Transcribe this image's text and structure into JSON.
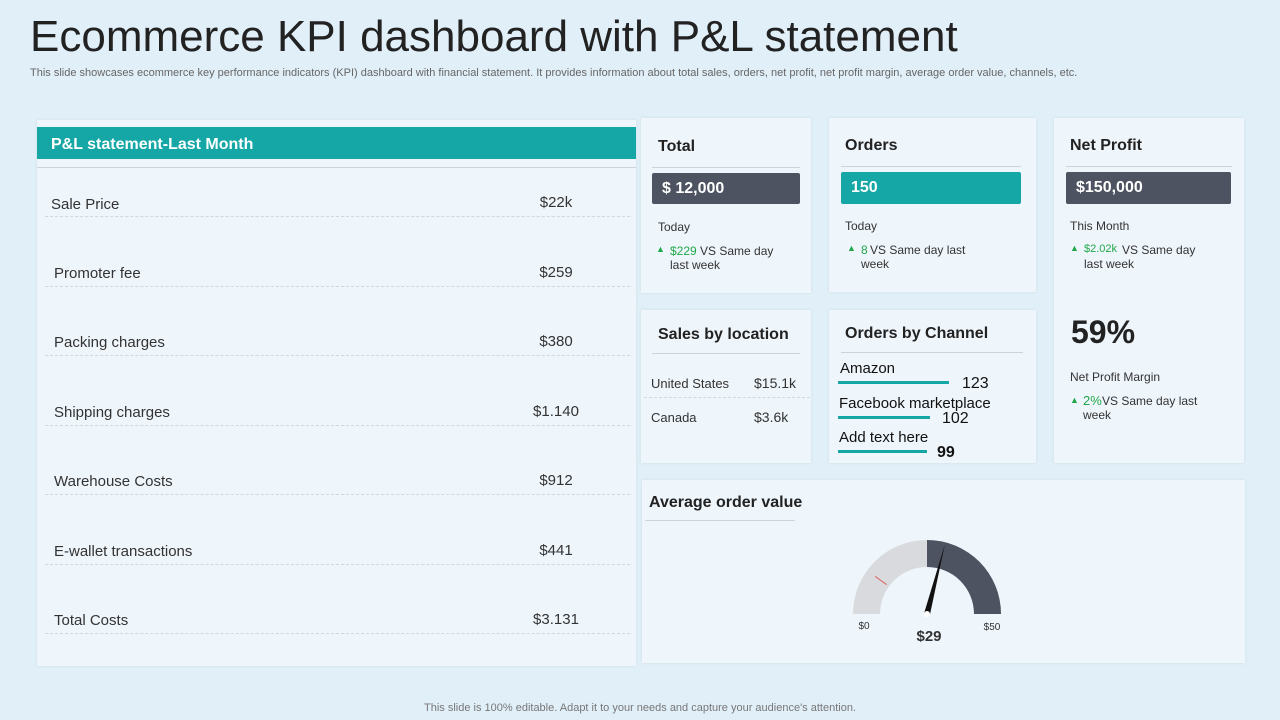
{
  "header": {
    "title": "Ecommerce KPI dashboard with P&L statement",
    "subtitle": "This slide showcases ecommerce key performance indicators (KPI) dashboard with financial statement. It provides information about total sales, orders, net profit, net profit margin, average order value, channels, etc."
  },
  "pl": {
    "title": "P&L statement-Last Month",
    "rows": [
      {
        "label": "Sale Price",
        "value": "$22k"
      },
      {
        "label": "Promoter fee",
        "value": "$259"
      },
      {
        "label": "Packing charges",
        "value": "$380"
      },
      {
        "label": "Shipping charges",
        "value": "$1.140"
      },
      {
        "label": "Warehouse Costs",
        "value": "$912"
      },
      {
        "label": "E-wallet transactions",
        "value": "$441"
      },
      {
        "label": "Total Costs",
        "value": "$3.131"
      }
    ]
  },
  "total": {
    "title": "Total",
    "value": "$ 12,000",
    "period": "Today",
    "change": "$229",
    "change_text": "VS  Same day last week"
  },
  "orders": {
    "title": "Orders",
    "value": "150",
    "period": "Today",
    "change": "8",
    "change_text": "VS Same day last week"
  },
  "net_profit": {
    "title": "Net Profit",
    "value": "$150,000",
    "period": "This Month",
    "change": "$2.02k",
    "change_text": "VS Same day last week",
    "margin": "59%",
    "margin_label": "Net Profit Margin",
    "margin_change": "2%",
    "margin_change_text": "VS Same day last week"
  },
  "sales_by_location": {
    "title": "Sales by location",
    "rows": [
      {
        "country": "United States",
        "value": "$15.1k"
      },
      {
        "country": "Canada",
        "value": "$3.6k"
      }
    ]
  },
  "orders_by_channel": {
    "title": "Orders by Channel",
    "channels": [
      {
        "name": "Amazon",
        "value": 123
      },
      {
        "name": "Facebook marketplace",
        "value": 102
      },
      {
        "name": "Add text here",
        "value": 99
      }
    ]
  },
  "average_order_value": {
    "title": "Average order value",
    "gauge": {
      "min": {
        "value": 0,
        "label": "$0"
      },
      "max": {
        "value": 50,
        "label": "$50"
      },
      "value": {
        "value": 29,
        "label": "$29"
      }
    }
  },
  "footer": "This slide is 100% editable. Adapt it to your needs and capture your audience's attention."
}
